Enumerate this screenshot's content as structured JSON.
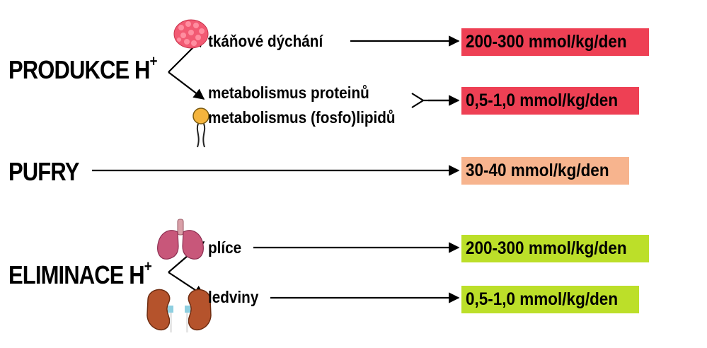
{
  "categories": {
    "produkce": {
      "text": "PRODUKCE H",
      "sup": "+"
    },
    "pufry": {
      "text": "PUFRY"
    },
    "eliminace": {
      "text": "ELIMINACE H",
      "sup": "+"
    }
  },
  "labels": {
    "tkanove": "tkáňové dýchání",
    "proteiny": "metabolismus proteinů",
    "lipidy": "metabolismus (fosfo)lipidů",
    "plice": "plíce",
    "ledviny": "ledviny"
  },
  "values": {
    "tkanove": "200-300 mmol/kg/den",
    "metabolismus": "0,5-1,0 mmol/kg/den",
    "pufry": "30-40 mmol/kg/den",
    "plice": "200-300 mmol/kg/den",
    "ledviny": "0,5-1,0 mmol/kg/den"
  },
  "colors": {
    "production": "#ee4054",
    "buffer": "#f7b48e",
    "elimination": "#bcdf29"
  },
  "icons": [
    "muscle-tissue-icon",
    "phospholipid-icon",
    "lungs-icon",
    "kidneys-icon"
  ]
}
